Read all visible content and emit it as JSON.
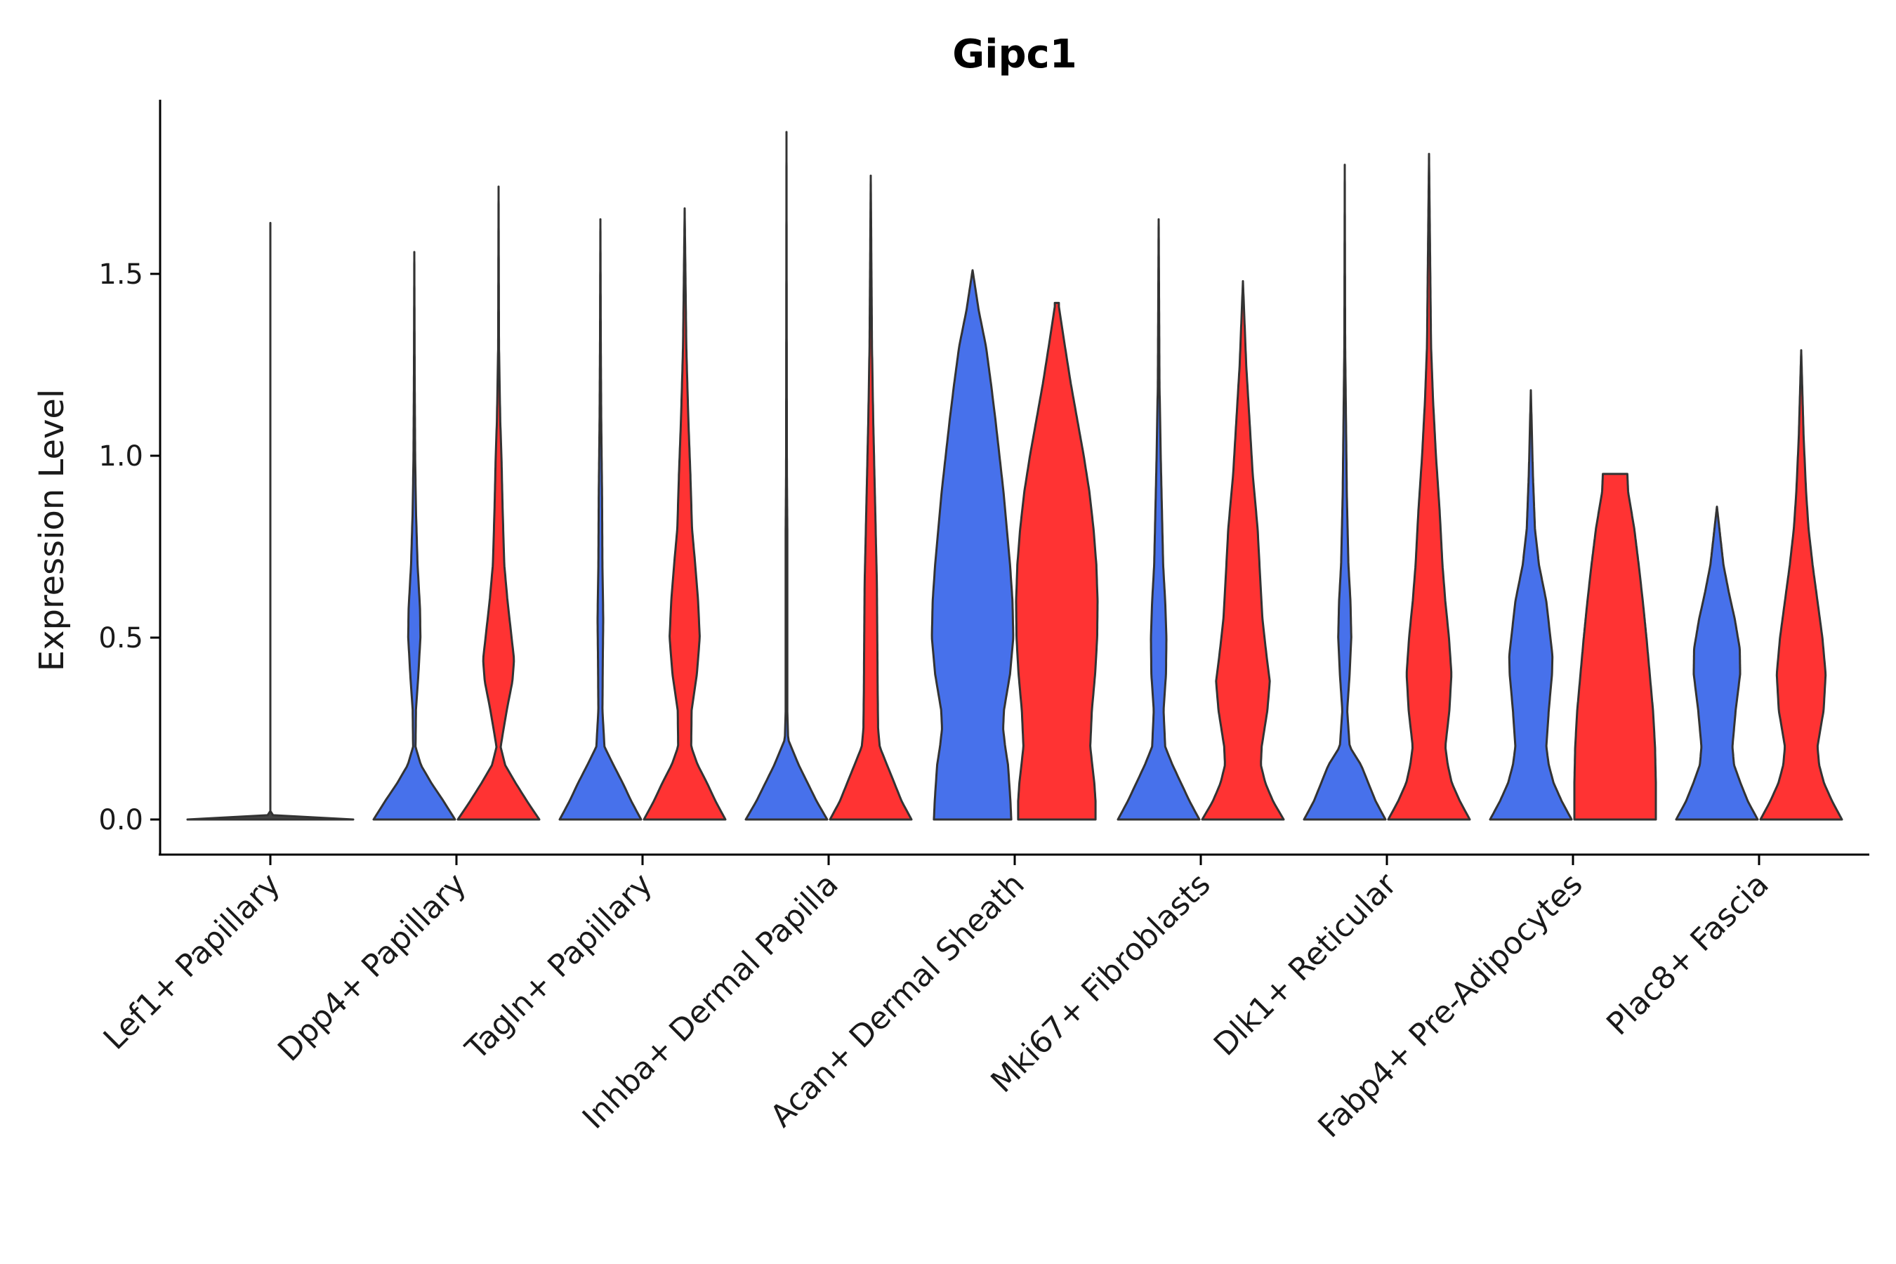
{
  "chart_data": {
    "type": "violin",
    "title": "Gipc1",
    "xlabel": "",
    "ylabel": "Expression Level",
    "ylim": [
      -0.1,
      1.98
    ],
    "yticks": [
      0.0,
      0.5,
      1.0,
      1.5
    ],
    "ytick_labels": [
      "0.0",
      "0.5",
      "1.0",
      "1.5"
    ],
    "legend": "none",
    "series_colors": [
      "#4771EB",
      "#FF3333"
    ],
    "categories": [
      "Lef1+ Papillary",
      "Dpp4+ Papillary",
      "Tagln+ Papillary",
      "Inhba+ Dermal Papilla",
      "Acan+ Dermal Sheath",
      "Mki67+ Fibroblasts",
      "Dlk1+ Reticular",
      "Fabp4+ Pre-Adipocytes",
      "Plac8+ Fascia"
    ],
    "violins": [
      {
        "category": "Lef1+ Papillary",
        "group": 0,
        "color": "#444444",
        "max": 1.64,
        "profile": [
          [
            0.0,
            1.0
          ],
          [
            0.005,
            0.06
          ],
          [
            0.02,
            0.0
          ],
          [
            1.64,
            0.0
          ]
        ]
      },
      {
        "category": "Dpp4+ Papillary",
        "group": 1,
        "color": "#4771EB",
        "max": 1.56,
        "profile": [
          [
            0.0,
            1.0
          ],
          [
            0.05,
            0.72
          ],
          [
            0.1,
            0.42
          ],
          [
            0.15,
            0.16
          ],
          [
            0.2,
            0.03
          ],
          [
            0.3,
            0.04
          ],
          [
            0.4,
            0.1
          ],
          [
            0.5,
            0.15
          ],
          [
            0.58,
            0.14
          ],
          [
            0.7,
            0.08
          ],
          [
            0.85,
            0.04
          ],
          [
            1.0,
            0.02
          ],
          [
            1.2,
            0.01
          ],
          [
            1.56,
            0.0
          ]
        ]
      },
      {
        "category": "Dpp4+ Papillary",
        "group": 2,
        "color": "#FF3333",
        "max": 1.74,
        "profile": [
          [
            0.0,
            1.0
          ],
          [
            0.05,
            0.7
          ],
          [
            0.1,
            0.42
          ],
          [
            0.15,
            0.16
          ],
          [
            0.2,
            0.05
          ],
          [
            0.3,
            0.2
          ],
          [
            0.38,
            0.34
          ],
          [
            0.44,
            0.38
          ],
          [
            0.5,
            0.32
          ],
          [
            0.6,
            0.22
          ],
          [
            0.7,
            0.14
          ],
          [
            0.85,
            0.1
          ],
          [
            1.0,
            0.07
          ],
          [
            1.1,
            0.04
          ],
          [
            1.3,
            0.01
          ],
          [
            1.74,
            0.0
          ]
        ]
      },
      {
        "category": "Tagln+ Papillary",
        "group": 1,
        "color": "#4771EB",
        "max": 1.65,
        "profile": [
          [
            0.0,
            1.0
          ],
          [
            0.05,
            0.76
          ],
          [
            0.1,
            0.55
          ],
          [
            0.15,
            0.32
          ],
          [
            0.2,
            0.1
          ],
          [
            0.3,
            0.05
          ],
          [
            0.45,
            0.06
          ],
          [
            0.55,
            0.07
          ],
          [
            0.7,
            0.05
          ],
          [
            0.9,
            0.04
          ],
          [
            1.1,
            0.02
          ],
          [
            1.3,
            0.01
          ],
          [
            1.65,
            0.0
          ]
        ]
      },
      {
        "category": "Tagln+ Papillary",
        "group": 2,
        "color": "#FF3333",
        "max": 1.68,
        "profile": [
          [
            0.0,
            1.0
          ],
          [
            0.05,
            0.76
          ],
          [
            0.1,
            0.55
          ],
          [
            0.15,
            0.32
          ],
          [
            0.2,
            0.16
          ],
          [
            0.3,
            0.17
          ],
          [
            0.4,
            0.3
          ],
          [
            0.5,
            0.37
          ],
          [
            0.6,
            0.33
          ],
          [
            0.7,
            0.26
          ],
          [
            0.8,
            0.18
          ],
          [
            0.95,
            0.14
          ],
          [
            1.1,
            0.09
          ],
          [
            1.3,
            0.04
          ],
          [
            1.68,
            0.0
          ]
        ]
      },
      {
        "category": "Inhba+ Dermal Papilla",
        "group": 1,
        "color": "#4771EB",
        "max": 1.89,
        "profile": [
          [
            0.0,
            1.0
          ],
          [
            0.05,
            0.74
          ],
          [
            0.1,
            0.52
          ],
          [
            0.15,
            0.3
          ],
          [
            0.22,
            0.04
          ],
          [
            0.3,
            0.02
          ],
          [
            0.5,
            0.02
          ],
          [
            0.8,
            0.02
          ],
          [
            0.95,
            0.01
          ],
          [
            1.89,
            0.0
          ]
        ]
      },
      {
        "category": "Inhba+ Dermal Papilla",
        "group": 2,
        "color": "#FF3333",
        "max": 1.77,
        "profile": [
          [
            0.0,
            1.0
          ],
          [
            0.05,
            0.76
          ],
          [
            0.1,
            0.58
          ],
          [
            0.15,
            0.4
          ],
          [
            0.2,
            0.22
          ],
          [
            0.25,
            0.18
          ],
          [
            0.35,
            0.17
          ],
          [
            0.5,
            0.16
          ],
          [
            0.65,
            0.15
          ],
          [
            0.8,
            0.12
          ],
          [
            0.95,
            0.09
          ],
          [
            1.1,
            0.06
          ],
          [
            1.3,
            0.03
          ],
          [
            1.77,
            0.0
          ]
        ]
      },
      {
        "category": "Acan+ Dermal Sheath",
        "group": 1,
        "color": "#4771EB",
        "max": 1.51,
        "profile": [
          [
            0.0,
            0.95
          ],
          [
            0.05,
            0.93
          ],
          [
            0.1,
            0.9
          ],
          [
            0.15,
            0.87
          ],
          [
            0.2,
            0.8
          ],
          [
            0.25,
            0.75
          ],
          [
            0.3,
            0.77
          ],
          [
            0.4,
            0.92
          ],
          [
            0.5,
            1.0
          ],
          [
            0.6,
            0.98
          ],
          [
            0.7,
            0.92
          ],
          [
            0.8,
            0.84
          ],
          [
            0.9,
            0.76
          ],
          [
            1.0,
            0.66
          ],
          [
            1.1,
            0.56
          ],
          [
            1.2,
            0.45
          ],
          [
            1.3,
            0.33
          ],
          [
            1.4,
            0.15
          ],
          [
            1.51,
            0.0
          ]
        ]
      },
      {
        "category": "Acan+ Dermal Sheath",
        "group": 2,
        "color": "#FF3333",
        "max": 1.42,
        "profile": [
          [
            0.0,
            0.95
          ],
          [
            0.05,
            0.95
          ],
          [
            0.1,
            0.92
          ],
          [
            0.2,
            0.82
          ],
          [
            0.3,
            0.86
          ],
          [
            0.4,
            0.94
          ],
          [
            0.5,
            0.99
          ],
          [
            0.6,
            1.0
          ],
          [
            0.7,
            0.97
          ],
          [
            0.8,
            0.9
          ],
          [
            0.9,
            0.8
          ],
          [
            1.0,
            0.66
          ],
          [
            1.1,
            0.5
          ],
          [
            1.2,
            0.34
          ],
          [
            1.3,
            0.2
          ],
          [
            1.41,
            0.05
          ],
          [
            1.42,
            0.05
          ]
        ]
      },
      {
        "category": "Mki67+ Fibroblasts",
        "group": 1,
        "color": "#4771EB",
        "max": 1.65,
        "profile": [
          [
            0.0,
            1.0
          ],
          [
            0.05,
            0.76
          ],
          [
            0.1,
            0.55
          ],
          [
            0.15,
            0.34
          ],
          [
            0.2,
            0.16
          ],
          [
            0.3,
            0.12
          ],
          [
            0.4,
            0.18
          ],
          [
            0.5,
            0.19
          ],
          [
            0.6,
            0.16
          ],
          [
            0.7,
            0.11
          ],
          [
            0.85,
            0.08
          ],
          [
            1.0,
            0.05
          ],
          [
            1.2,
            0.02
          ],
          [
            1.65,
            0.0
          ]
        ]
      },
      {
        "category": "Mki67+ Fibroblasts",
        "group": 2,
        "color": "#FF3333",
        "max": 1.48,
        "profile": [
          [
            0.0,
            1.0
          ],
          [
            0.05,
            0.74
          ],
          [
            0.1,
            0.55
          ],
          [
            0.15,
            0.44
          ],
          [
            0.2,
            0.46
          ],
          [
            0.3,
            0.6
          ],
          [
            0.38,
            0.66
          ],
          [
            0.45,
            0.58
          ],
          [
            0.55,
            0.48
          ],
          [
            0.65,
            0.43
          ],
          [
            0.8,
            0.36
          ],
          [
            0.95,
            0.24
          ],
          [
            1.1,
            0.16
          ],
          [
            1.25,
            0.08
          ],
          [
            1.48,
            0.0
          ]
        ]
      },
      {
        "category": "Dlk1+ Reticular",
        "group": 1,
        "color": "#4771EB",
        "max": 1.8,
        "profile": [
          [
            0.0,
            1.0
          ],
          [
            0.05,
            0.76
          ],
          [
            0.1,
            0.58
          ],
          [
            0.15,
            0.4
          ],
          [
            0.2,
            0.12
          ],
          [
            0.3,
            0.06
          ],
          [
            0.4,
            0.12
          ],
          [
            0.5,
            0.16
          ],
          [
            0.6,
            0.14
          ],
          [
            0.7,
            0.09
          ],
          [
            0.9,
            0.05
          ],
          [
            1.1,
            0.03
          ],
          [
            1.3,
            0.01
          ],
          [
            1.8,
            0.0
          ]
        ]
      },
      {
        "category": "Dlk1+ Reticular",
        "group": 2,
        "color": "#FF3333",
        "max": 1.83,
        "profile": [
          [
            0.0,
            1.0
          ],
          [
            0.05,
            0.76
          ],
          [
            0.1,
            0.56
          ],
          [
            0.15,
            0.46
          ],
          [
            0.2,
            0.4
          ],
          [
            0.3,
            0.5
          ],
          [
            0.4,
            0.55
          ],
          [
            0.5,
            0.49
          ],
          [
            0.6,
            0.4
          ],
          [
            0.7,
            0.33
          ],
          [
            0.85,
            0.26
          ],
          [
            1.0,
            0.17
          ],
          [
            1.15,
            0.1
          ],
          [
            1.3,
            0.05
          ],
          [
            1.83,
            0.0
          ]
        ]
      },
      {
        "category": "Fabp4+ Pre-Adipocytes",
        "group": 1,
        "color": "#4771EB",
        "max": 1.18,
        "profile": [
          [
            0.0,
            1.0
          ],
          [
            0.05,
            0.76
          ],
          [
            0.1,
            0.56
          ],
          [
            0.15,
            0.44
          ],
          [
            0.2,
            0.38
          ],
          [
            0.3,
            0.44
          ],
          [
            0.4,
            0.52
          ],
          [
            0.45,
            0.53
          ],
          [
            0.5,
            0.48
          ],
          [
            0.6,
            0.38
          ],
          [
            0.7,
            0.2
          ],
          [
            0.8,
            0.1
          ],
          [
            0.95,
            0.05
          ],
          [
            1.18,
            0.0
          ]
        ]
      },
      {
        "category": "Fabp4+ Pre-Adipocytes",
        "group": 2,
        "color": "#FF3333",
        "max": 0.95,
        "profile": [
          [
            0.0,
            1.0
          ],
          [
            0.1,
            1.0
          ],
          [
            0.2,
            0.98
          ],
          [
            0.3,
            0.93
          ],
          [
            0.4,
            0.85
          ],
          [
            0.5,
            0.77
          ],
          [
            0.6,
            0.68
          ],
          [
            0.7,
            0.58
          ],
          [
            0.8,
            0.47
          ],
          [
            0.9,
            0.32
          ],
          [
            0.95,
            0.3
          ]
        ]
      },
      {
        "category": "Plac8+ Fascia",
        "group": 1,
        "color": "#4771EB",
        "max": 0.86,
        "profile": [
          [
            0.0,
            1.0
          ],
          [
            0.05,
            0.76
          ],
          [
            0.1,
            0.58
          ],
          [
            0.15,
            0.42
          ],
          [
            0.2,
            0.38
          ],
          [
            0.3,
            0.46
          ],
          [
            0.4,
            0.57
          ],
          [
            0.47,
            0.56
          ],
          [
            0.55,
            0.44
          ],
          [
            0.62,
            0.3
          ],
          [
            0.7,
            0.16
          ],
          [
            0.8,
            0.06
          ],
          [
            0.86,
            0.0
          ]
        ]
      },
      {
        "category": "Plac8+ Fascia",
        "group": 2,
        "color": "#FF3333",
        "max": 1.29,
        "profile": [
          [
            0.0,
            1.0
          ],
          [
            0.05,
            0.76
          ],
          [
            0.1,
            0.56
          ],
          [
            0.15,
            0.44
          ],
          [
            0.2,
            0.4
          ],
          [
            0.3,
            0.55
          ],
          [
            0.4,
            0.6
          ],
          [
            0.5,
            0.52
          ],
          [
            0.6,
            0.4
          ],
          [
            0.7,
            0.28
          ],
          [
            0.8,
            0.18
          ],
          [
            0.9,
            0.12
          ],
          [
            1.05,
            0.06
          ],
          [
            1.29,
            0.0
          ]
        ]
      }
    ]
  }
}
